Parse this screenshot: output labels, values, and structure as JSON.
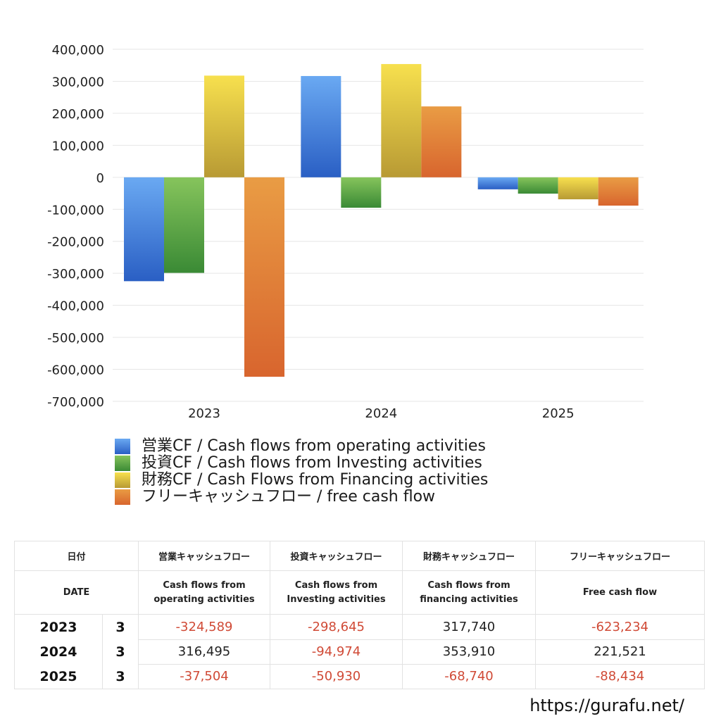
{
  "chart_data": {
    "type": "bar",
    "categories": [
      "2023",
      "2024",
      "2025"
    ],
    "series": [
      {
        "name": "営業CF / Cash flows from operating activities",
        "values": [
          -324589,
          316495,
          -37504
        ],
        "color_top": "#6aa9f2",
        "color_bottom": "#2a5fc4"
      },
      {
        "name": "投資CF / Cash flows from Investing activities",
        "values": [
          -298645,
          -94974,
          -50930
        ],
        "color_top": "#86c45c",
        "color_bottom": "#3a8a35"
      },
      {
        "name": "財務CF / Cash Flows from Financing activities",
        "values": [
          317740,
          353910,
          -68740
        ],
        "color_top": "#f7e04e",
        "color_bottom": "#b89a34"
      },
      {
        "name": "フリーキャッシュフロー / free cash flow",
        "values": [
          -623234,
          221521,
          -88434
        ],
        "color_top": "#e99c44",
        "color_bottom": "#d8652e"
      }
    ],
    "ylim": [
      -700000,
      400000
    ],
    "yticks": [
      "400,000",
      "300,000",
      "200,000",
      "100,000",
      "0",
      "-100,000",
      "-200,000",
      "-300,000",
      "-400,000",
      "-500,000",
      "-600,000",
      "-700,000"
    ],
    "ytick_values": [
      400000,
      300000,
      200000,
      100000,
      0,
      -100000,
      -200000,
      -300000,
      -400000,
      -500000,
      -600000,
      -700000
    ],
    "grid": true,
    "legend_position": "bottom"
  },
  "table": {
    "header_row1": {
      "date": "日付",
      "operating": "営業キャッシュフロー",
      "investing": "投資キャッシュフロー",
      "financing": "財務キャッシュフロー",
      "free": "フリーキャッシュフロー"
    },
    "header_row2": {
      "date": "DATE",
      "operating_1": "Cash flows from",
      "operating_2": "operating activities",
      "investing_1": "Cash flows from",
      "investing_2": "Investing activities",
      "financing_1": "Cash flows from",
      "financing_2": "financing activities",
      "free": "Free cash flow"
    },
    "rows": [
      {
        "year": "2023",
        "month": "3",
        "operating": "-324,589",
        "investing": "-298,645",
        "financing": "317,740",
        "free": "-623,234"
      },
      {
        "year": "2024",
        "month": "3",
        "operating": "316,495",
        "investing": "-94,974",
        "financing": "353,910",
        "free": "221,521"
      },
      {
        "year": "2025",
        "month": "3",
        "operating": "-37,504",
        "investing": "-50,930",
        "financing": "-68,740",
        "free": "-88,434"
      }
    ],
    "negative_color": "#d04a36"
  },
  "footer": {
    "url": "https://gurafu.net/"
  }
}
